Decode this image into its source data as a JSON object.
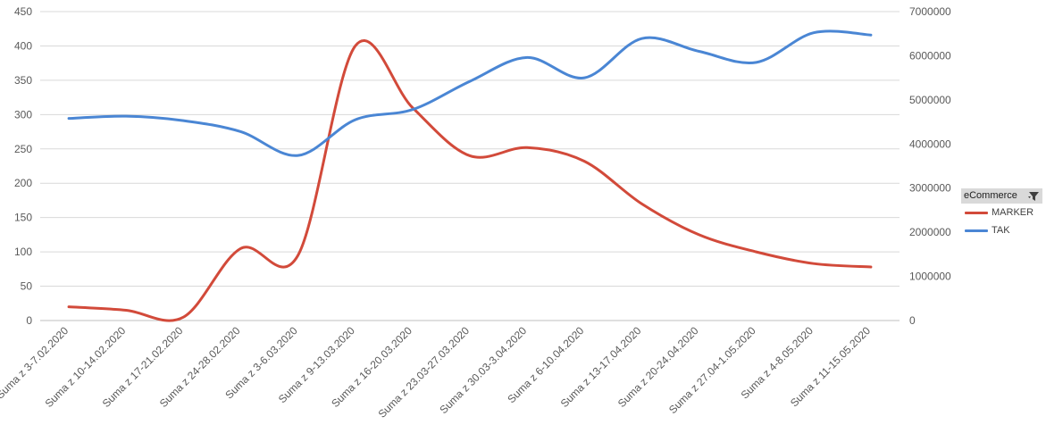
{
  "chart_data": {
    "type": "line",
    "categories": [
      "Suma z 3-7.02.2020",
      "Suma z 10-14.02.2020",
      "Suma z 17-21.02.2020",
      "Suma z 24-28.02.2020",
      "Suma z 3-6.03.2020",
      "Suma z 9-13.03.2020",
      "Suma z 16-20.03.2020",
      "Suma z 23.03-27.03.2020",
      "Suma z 30.03-3.04.2020",
      "Suma z 6-10.04.2020",
      "Suma z 13-17.04.2020",
      "Suma z 20-24.04.2020",
      "Suma z 27.04-1.05.2020",
      "Suma z 4-8.05.2020",
      "Suma z 11-15.05.2020"
    ],
    "series": [
      {
        "name": "MARKER",
        "axis": "left",
        "color": "#d24a3a",
        "values": [
          20,
          15,
          5,
          105,
          95,
          400,
          310,
          240,
          252,
          232,
          170,
          125,
          100,
          83,
          78
        ]
      },
      {
        "name": "TAK",
        "axis": "right",
        "color": "#4a86d4",
        "values": [
          4580000,
          4630000,
          4530000,
          4280000,
          3740000,
          4550000,
          4780000,
          5420000,
          5960000,
          5500000,
          6390000,
          6100000,
          5850000,
          6520000,
          6470000
        ]
      }
    ],
    "y_left": {
      "ylim": [
        0,
        450
      ],
      "ticks": [
        0,
        50,
        100,
        150,
        200,
        250,
        300,
        350,
        400,
        450
      ]
    },
    "y_right": {
      "ylim": [
        0,
        7000000
      ],
      "ticks": [
        0,
        1000000,
        2000000,
        3000000,
        4000000,
        5000000,
        6000000,
        7000000
      ]
    },
    "grid": true,
    "legend": {
      "placement": "right",
      "title": "eCommerce",
      "entries": [
        "MARKER",
        "TAK"
      ]
    }
  }
}
